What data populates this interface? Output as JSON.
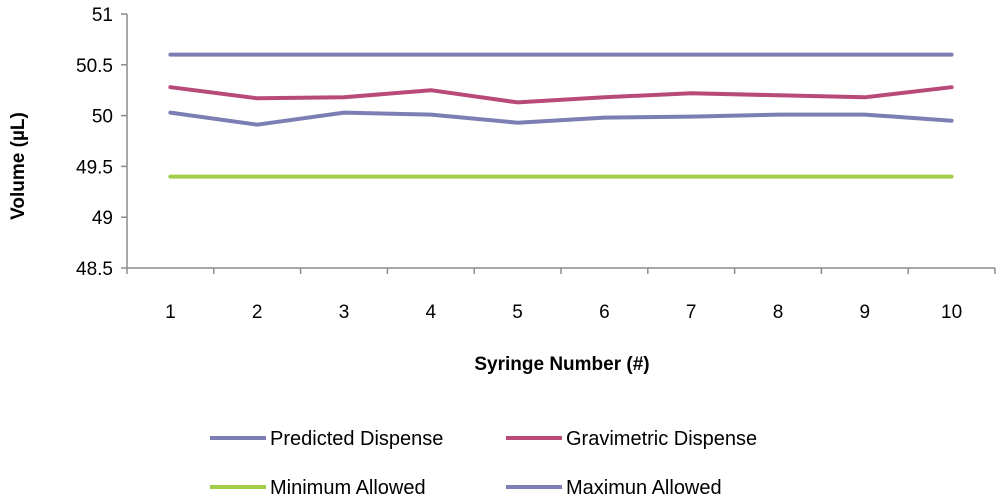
{
  "chart_data": {
    "type": "line",
    "title": "",
    "xlabel": "Syringe Number (#)",
    "ylabel": "Volume (µL)",
    "categories": [
      "1",
      "2",
      "3",
      "4",
      "5",
      "6",
      "7",
      "8",
      "9",
      "10"
    ],
    "ylim": [
      48.5,
      51
    ],
    "yticks": [
      "48.5",
      "49",
      "49.5",
      "50",
      "50.5",
      "51"
    ],
    "ytick_values": [
      48.5,
      49,
      49.5,
      50,
      50.5,
      51
    ],
    "grid": false,
    "legend_position": "bottom",
    "series": [
      {
        "name": "Maximun Allowed",
        "color": "#7b7fb3",
        "values": [
          50.6,
          50.6,
          50.6,
          50.6,
          50.6,
          50.6,
          50.6,
          50.6,
          50.6,
          50.6
        ]
      },
      {
        "name": "Minimum Allowed",
        "color": "#a4cd4a",
        "values": [
          49.4,
          49.4,
          49.4,
          49.4,
          49.4,
          49.4,
          49.4,
          49.4,
          49.4,
          49.4
        ]
      },
      {
        "name": "Gravimetric Dispense",
        "color": "#b84a7a",
        "values": [
          50.28,
          50.17,
          50.18,
          50.25,
          50.13,
          50.18,
          50.22,
          50.2,
          50.18,
          50.28
        ]
      },
      {
        "name": "Predicted Dispense",
        "color": "#7b7fb3",
        "values": [
          50.03,
          49.91,
          50.03,
          50.01,
          49.93,
          49.98,
          49.99,
          50.01,
          50.01,
          49.95
        ]
      }
    ],
    "legend_order": [
      "Predicted Dispense",
      "Gravimetric Dispense",
      "Minimum Allowed",
      "Maximun Allowed"
    ]
  }
}
